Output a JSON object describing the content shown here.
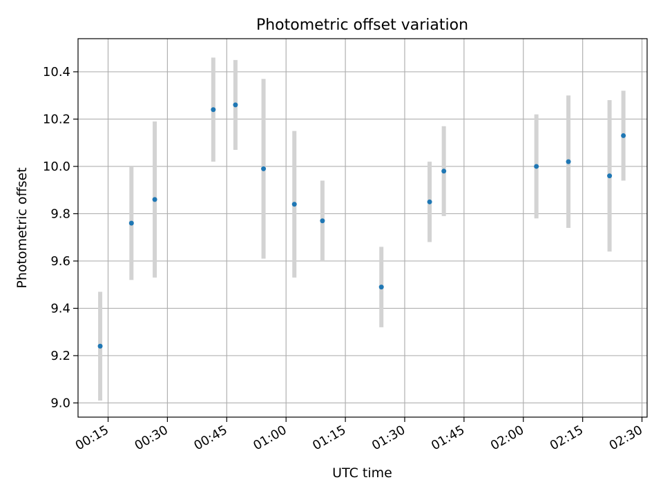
{
  "chart_data": {
    "type": "scatter",
    "title": "Photometric offset variation",
    "xlabel": "UTC time",
    "ylabel": "Photometric offset",
    "x_tick_labels": [
      "00:15",
      "00:30",
      "00:45",
      "01:00",
      "01:15",
      "01:30",
      "01:45",
      "02:00",
      "02:15",
      "02:30"
    ],
    "y_tick_labels": [
      "9.0",
      "9.2",
      "9.4",
      "9.6",
      "9.8",
      "10.0",
      "10.2",
      "10.4"
    ],
    "x_ticks_min": [
      15,
      30,
      45,
      60,
      75,
      90,
      105,
      120,
      135,
      150
    ],
    "y_ticks": [
      9.0,
      9.2,
      9.4,
      9.6,
      9.8,
      10.0,
      10.2,
      10.4
    ],
    "xlim_min": [
      7.4,
      151.3
    ],
    "ylim": [
      8.94,
      10.54
    ],
    "grid": true,
    "series": [
      {
        "marker_color": "#1f77b4",
        "errorbar_color": "#d3d3d3",
        "points": [
          {
            "t": "00:13",
            "x_min": 13.0,
            "y": 9.24,
            "yerr": 0.23
          },
          {
            "t": "00:21",
            "x_min": 20.9,
            "y": 9.76,
            "yerr": 0.24
          },
          {
            "t": "00:27",
            "x_min": 26.8,
            "y": 9.86,
            "yerr": 0.33
          },
          {
            "t": "00:42",
            "x_min": 41.6,
            "y": 10.24,
            "yerr": 0.22
          },
          {
            "t": "00:47",
            "x_min": 47.2,
            "y": 10.26,
            "yerr": 0.19
          },
          {
            "t": "00:54",
            "x_min": 54.3,
            "y": 9.99,
            "yerr": 0.38
          },
          {
            "t": "01:02",
            "x_min": 62.1,
            "y": 9.84,
            "yerr": 0.31
          },
          {
            "t": "01:09",
            "x_min": 69.2,
            "y": 9.77,
            "yerr": 0.17
          },
          {
            "t": "01:24",
            "x_min": 84.1,
            "y": 9.49,
            "yerr": 0.17
          },
          {
            "t": "01:36",
            "x_min": 96.3,
            "y": 9.85,
            "yerr": 0.17
          },
          {
            "t": "01:40",
            "x_min": 99.9,
            "y": 9.98,
            "yerr": 0.19
          },
          {
            "t": "02:03",
            "x_min": 123.3,
            "y": 10.0,
            "yerr": 0.22
          },
          {
            "t": "02:11",
            "x_min": 131.4,
            "y": 10.02,
            "yerr": 0.28
          },
          {
            "t": "02:22",
            "x_min": 141.8,
            "y": 9.96,
            "yerr": 0.32
          },
          {
            "t": "02:25",
            "x_min": 145.3,
            "y": 10.13,
            "yerr": 0.19
          }
        ]
      }
    ]
  }
}
